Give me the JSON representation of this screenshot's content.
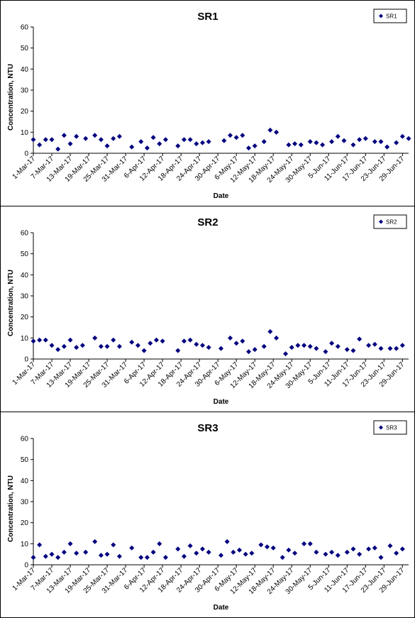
{
  "chart_data": [
    {
      "type": "scatter",
      "title": "SR1",
      "xlabel": "Date",
      "ylabel": "Concentration, NTU",
      "ylim": [
        0,
        60
      ],
      "yticks": [
        "0",
        "10",
        "20",
        "30",
        "40",
        "50",
        "60"
      ],
      "xtick_labels": [
        "1-Mar-17",
        "7-Mar-17",
        "13-Mar-17",
        "19-Mar-17",
        "25-Mar-17",
        "31-Mar-17",
        "6-Apr-17",
        "12-Apr-17",
        "18-Apr-17",
        "24-Apr-17",
        "30-Apr-17",
        "6-May-17",
        "12-May-17",
        "18-May-17",
        "24-May-17",
        "30-May-17",
        "5-Jun-17",
        "11-Jun-17",
        "17-Jun-17",
        "23-Jun-17",
        "29-Jun-17"
      ],
      "grid": false,
      "legend_position": "top-right",
      "marker_color": "#000080",
      "series": [
        {
          "name": "SR1",
          "points": [
            [
              "1-Mar-17",
              6.5
            ],
            [
              "3-Mar-17",
              4.0
            ],
            [
              "5-Mar-17",
              6.5
            ],
            [
              "7-Mar-17",
              6.5
            ],
            [
              "9-Mar-17",
              2.0
            ],
            [
              "11-Mar-17",
              8.5
            ],
            [
              "13-Mar-17",
              4.5
            ],
            [
              "15-Mar-17",
              8.0
            ],
            [
              "18-Mar-17",
              7.0
            ],
            [
              "21-Mar-17",
              8.5
            ],
            [
              "23-Mar-17",
              6.5
            ],
            [
              "25-Mar-17",
              3.5
            ],
            [
              "27-Mar-17",
              7.0
            ],
            [
              "29-Mar-17",
              8.0
            ],
            [
              "2-Apr-17",
              3.0
            ],
            [
              "5-Apr-17",
              5.5
            ],
            [
              "7-Apr-17",
              2.5
            ],
            [
              "9-Apr-17",
              7.5
            ],
            [
              "11-Apr-17",
              4.5
            ],
            [
              "13-Apr-17",
              6.5
            ],
            [
              "17-Apr-17",
              3.5
            ],
            [
              "19-Apr-17",
              6.5
            ],
            [
              "21-Apr-17",
              6.5
            ],
            [
              "23-Apr-17",
              4.5
            ],
            [
              "25-Apr-17",
              5.0
            ],
            [
              "27-Apr-17",
              5.5
            ],
            [
              "2-May-17",
              6.0
            ],
            [
              "4-May-17",
              8.5
            ],
            [
              "6-May-17",
              7.5
            ],
            [
              "8-May-17",
              8.5
            ],
            [
              "10-May-17",
              2.5
            ],
            [
              "12-May-17",
              3.5
            ],
            [
              "15-May-17",
              5.5
            ],
            [
              "17-May-17",
              11.0
            ],
            [
              "19-May-17",
              10.0
            ],
            [
              "23-May-17",
              4.0
            ],
            [
              "25-May-17",
              4.5
            ],
            [
              "27-May-17",
              4.0
            ],
            [
              "30-May-17",
              5.5
            ],
            [
              "1-Jun-17",
              5.0
            ],
            [
              "3-Jun-17",
              4.0
            ],
            [
              "6-Jun-17",
              5.5
            ],
            [
              "8-Jun-17",
              8.0
            ],
            [
              "10-Jun-17",
              6.0
            ],
            [
              "13-Jun-17",
              4.0
            ],
            [
              "15-Jun-17",
              6.5
            ],
            [
              "17-Jun-17",
              7.0
            ],
            [
              "20-Jun-17",
              5.5
            ],
            [
              "22-Jun-17",
              5.5
            ],
            [
              "24-Jun-17",
              3.0
            ],
            [
              "27-Jun-17",
              5.0
            ],
            [
              "29-Jun-17",
              8.0
            ],
            [
              "1-Jul-17",
              7.0
            ]
          ]
        }
      ]
    },
    {
      "type": "scatter",
      "title": "SR2",
      "xlabel": "Date",
      "ylabel": "Concentration, NTU",
      "ylim": [
        0,
        60
      ],
      "yticks": [
        "0",
        "10",
        "20",
        "30",
        "40",
        "50",
        "60"
      ],
      "xtick_labels": [
        "1-Mar-17",
        "7-Mar-17",
        "13-Mar-17",
        "19-Mar-17",
        "25-Mar-17",
        "31-Mar-17",
        "6-Apr-17",
        "12-Apr-17",
        "18-Apr-17",
        "24-Apr-17",
        "30-Apr-17",
        "6-May-17",
        "12-May-17",
        "18-May-17",
        "24-May-17",
        "30-May-17",
        "5-Jun-17",
        "11-Jun-17",
        "17-Jun-17",
        "23-Jun-17",
        "29-Jun-17"
      ],
      "grid": false,
      "legend_position": "top-right",
      "marker_color": "#000080",
      "series": [
        {
          "name": "SR2",
          "points": [
            [
              "1-Mar-17",
              8.5
            ],
            [
              "3-Mar-17",
              9.0
            ],
            [
              "5-Mar-17",
              9.0
            ],
            [
              "7-Mar-17",
              6.5
            ],
            [
              "9-Mar-17",
              4.5
            ],
            [
              "11-Mar-17",
              6.0
            ],
            [
              "13-Mar-17",
              9.0
            ],
            [
              "15-Mar-17",
              5.5
            ],
            [
              "17-Mar-17",
              6.5
            ],
            [
              "21-Mar-17",
              10.0
            ],
            [
              "23-Mar-17",
              6.0
            ],
            [
              "25-Mar-17",
              6.0
            ],
            [
              "27-Mar-17",
              9.0
            ],
            [
              "29-Mar-17",
              6.0
            ],
            [
              "2-Apr-17",
              8.0
            ],
            [
              "4-Apr-17",
              6.5
            ],
            [
              "6-Apr-17",
              4.0
            ],
            [
              "8-Apr-17",
              7.5
            ],
            [
              "10-Apr-17",
              9.0
            ],
            [
              "12-Apr-17",
              8.5
            ],
            [
              "17-Apr-17",
              4.0
            ],
            [
              "19-Apr-17",
              8.5
            ],
            [
              "21-Apr-17",
              9.0
            ],
            [
              "23-Apr-17",
              7.0
            ],
            [
              "25-Apr-17",
              6.5
            ],
            [
              "27-Apr-17",
              5.5
            ],
            [
              "1-May-17",
              5.0
            ],
            [
              "4-May-17",
              10.0
            ],
            [
              "6-May-17",
              7.5
            ],
            [
              "8-May-17",
              8.5
            ],
            [
              "10-May-17",
              3.5
            ],
            [
              "12-May-17",
              4.5
            ],
            [
              "15-May-17",
              6.0
            ],
            [
              "17-May-17",
              13.0
            ],
            [
              "19-May-17",
              10.0
            ],
            [
              "22-May-17",
              2.5
            ],
            [
              "24-May-17",
              5.5
            ],
            [
              "26-May-17",
              6.5
            ],
            [
              "28-May-17",
              6.5
            ],
            [
              "30-May-17",
              6.0
            ],
            [
              "1-Jun-17",
              5.0
            ],
            [
              "4-Jun-17",
              3.5
            ],
            [
              "6-Jun-17",
              7.5
            ],
            [
              "8-Jun-17",
              6.0
            ],
            [
              "11-Jun-17",
              4.5
            ],
            [
              "13-Jun-17",
              4.0
            ],
            [
              "15-Jun-17",
              9.5
            ],
            [
              "18-Jun-17",
              6.5
            ],
            [
              "20-Jun-17",
              7.0
            ],
            [
              "22-Jun-17",
              5.0
            ],
            [
              "25-Jun-17",
              5.0
            ],
            [
              "27-Jun-17",
              5.0
            ],
            [
              "29-Jun-17",
              6.5
            ]
          ]
        }
      ]
    },
    {
      "type": "scatter",
      "title": "SR3",
      "xlabel": "Date",
      "ylabel": "Concentration, NTU",
      "ylim": [
        0,
        60
      ],
      "yticks": [
        "0",
        "10",
        "20",
        "30",
        "40",
        "50",
        "60"
      ],
      "xtick_labels": [
        "1-Mar-17",
        "7-Mar-17",
        "13-Mar-17",
        "19-Mar-17",
        "25-Mar-17",
        "31-Mar-17",
        "6-Apr-17",
        "12-Apr-17",
        "18-Apr-17",
        "24-Apr-17",
        "30-Apr-17",
        "6-May-17",
        "12-May-17",
        "18-May-17",
        "24-May-17",
        "30-May-17",
        "5-Jun-17",
        "11-Jun-17",
        "17-Jun-17",
        "23-Jun-17",
        "29-Jun-17"
      ],
      "grid": false,
      "legend_position": "top-right",
      "marker_color": "#000080",
      "series": [
        {
          "name": "SR3",
          "points": [
            [
              "1-Mar-17",
              3.5
            ],
            [
              "3-Mar-17",
              9.5
            ],
            [
              "5-Mar-17",
              4.0
            ],
            [
              "7-Mar-17",
              5.0
            ],
            [
              "9-Mar-17",
              3.5
            ],
            [
              "11-Mar-17",
              6.0
            ],
            [
              "13-Mar-17",
              10.0
            ],
            [
              "15-Mar-17",
              5.5
            ],
            [
              "18-Mar-17",
              6.0
            ],
            [
              "21-Mar-17",
              11.0
            ],
            [
              "23-Mar-17",
              4.5
            ],
            [
              "25-Mar-17",
              5.0
            ],
            [
              "27-Mar-17",
              9.5
            ],
            [
              "29-Mar-17",
              4.0
            ],
            [
              "2-Apr-17",
              8.0
            ],
            [
              "5-Apr-17",
              3.5
            ],
            [
              "7-Apr-17",
              3.5
            ],
            [
              "9-Apr-17",
              6.0
            ],
            [
              "11-Apr-17",
              10.0
            ],
            [
              "13-Apr-17",
              3.5
            ],
            [
              "17-Apr-17",
              7.5
            ],
            [
              "19-Apr-17",
              4.0
            ],
            [
              "21-Apr-17",
              9.0
            ],
            [
              "23-Apr-17",
              5.5
            ],
            [
              "25-Apr-17",
              7.5
            ],
            [
              "27-Apr-17",
              6.0
            ],
            [
              "1-May-17",
              4.5
            ],
            [
              "3-May-17",
              11.0
            ],
            [
              "5-May-17",
              6.0
            ],
            [
              "7-May-17",
              7.0
            ],
            [
              "9-May-17",
              5.0
            ],
            [
              "11-May-17",
              5.5
            ],
            [
              "14-May-17",
              9.5
            ],
            [
              "16-May-17",
              8.5
            ],
            [
              "18-May-17",
              8.0
            ],
            [
              "21-May-17",
              3.5
            ],
            [
              "23-May-17",
              7.0
            ],
            [
              "25-May-17",
              5.5
            ],
            [
              "28-May-17",
              10.0
            ],
            [
              "30-May-17",
              10.0
            ],
            [
              "1-Jun-17",
              6.0
            ],
            [
              "4-Jun-17",
              5.0
            ],
            [
              "6-Jun-17",
              6.0
            ],
            [
              "8-Jun-17",
              4.5
            ],
            [
              "11-Jun-17",
              6.0
            ],
            [
              "13-Jun-17",
              7.5
            ],
            [
              "15-Jun-17",
              5.0
            ],
            [
              "18-Jun-17",
              7.5
            ],
            [
              "20-Jun-17",
              8.0
            ],
            [
              "22-Jun-17",
              3.5
            ],
            [
              "25-Jun-17",
              9.0
            ],
            [
              "27-Jun-17",
              5.5
            ],
            [
              "29-Jun-17",
              7.5
            ]
          ]
        }
      ]
    }
  ]
}
